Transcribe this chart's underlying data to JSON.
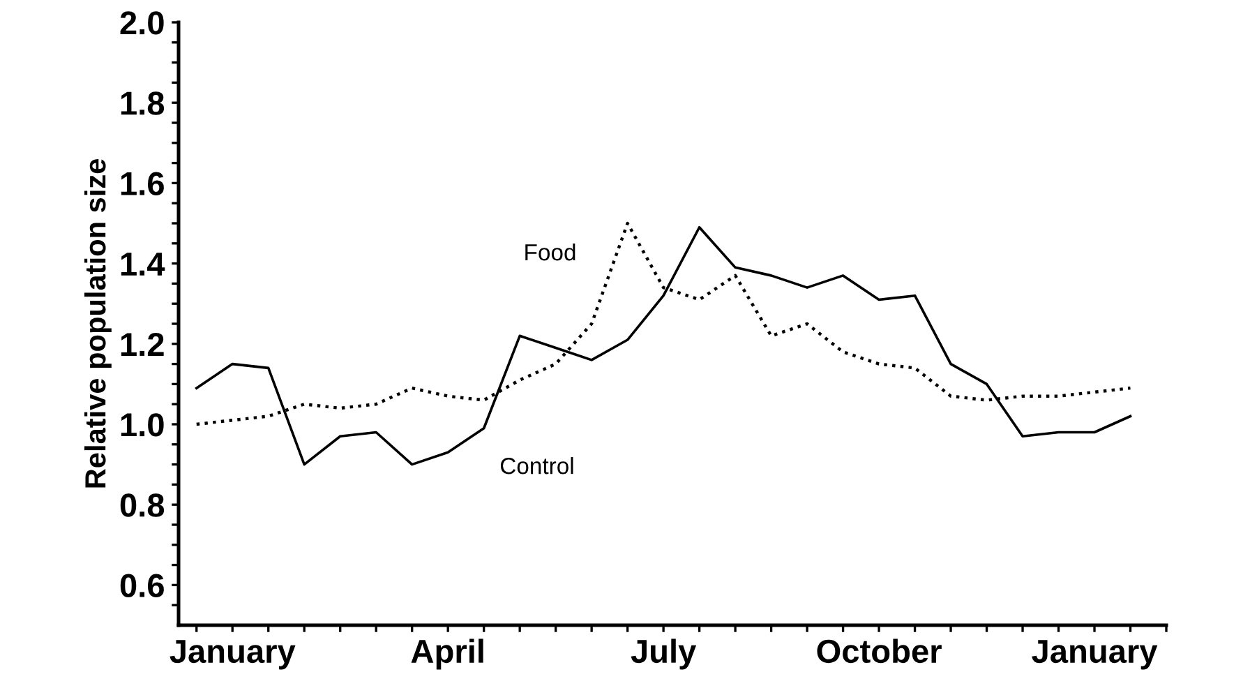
{
  "chart_data": {
    "type": "line",
    "ylabel": "Relative population size",
    "categories": [
      null,
      "January",
      null,
      null,
      null,
      null,
      null,
      "April",
      null,
      null,
      null,
      null,
      null,
      "July",
      null,
      null,
      null,
      null,
      null,
      "October",
      null,
      null,
      null,
      null,
      null,
      "January",
      null
    ],
    "ylim": [
      0.5,
      2.0
    ],
    "yticks": [
      {
        "value": 0.55,
        "label": null
      },
      {
        "value": 0.6,
        "label": "0.6"
      },
      {
        "value": 0.65,
        "label": null
      },
      {
        "value": 0.7,
        "label": null
      },
      {
        "value": 0.75,
        "label": null
      },
      {
        "value": 0.8,
        "label": "0.8"
      },
      {
        "value": 0.85,
        "label": null
      },
      {
        "value": 0.9,
        "label": null
      },
      {
        "value": 0.95,
        "label": null
      },
      {
        "value": 1.0,
        "label": "1.0"
      },
      {
        "value": 1.05,
        "label": null
      },
      {
        "value": 1.1,
        "label": null
      },
      {
        "value": 1.15,
        "label": null
      },
      {
        "value": 1.2,
        "label": "1.2"
      },
      {
        "value": 1.25,
        "label": null
      },
      {
        "value": 1.3,
        "label": null
      },
      {
        "value": 1.35,
        "label": null
      },
      {
        "value": 1.4,
        "label": "1.4"
      },
      {
        "value": 1.45,
        "label": null
      },
      {
        "value": 1.5,
        "label": null
      },
      {
        "value": 1.55,
        "label": null
      },
      {
        "value": 1.6,
        "label": "1.6"
      },
      {
        "value": 1.65,
        "label": null
      },
      {
        "value": 1.7,
        "label": null
      },
      {
        "value": 1.75,
        "label": null
      },
      {
        "value": 1.8,
        "label": "1.8"
      },
      {
        "value": 1.85,
        "label": null
      },
      {
        "value": 1.9,
        "label": null
      },
      {
        "value": 1.95,
        "label": null
      },
      {
        "value": 2.0,
        "label": "2.0"
      }
    ],
    "grid": false,
    "legend": false,
    "series": [
      {
        "name": "Control",
        "color": "#000000",
        "line_style": "solid",
        "values": [
          1.09,
          1.15,
          1.14,
          0.9,
          0.97,
          0.98,
          0.9,
          0.93,
          0.99,
          1.22,
          1.19,
          1.16,
          1.21,
          1.32,
          1.49,
          1.39,
          1.37,
          1.34,
          1.37,
          1.31,
          1.32,
          1.15,
          1.1,
          0.97,
          0.98,
          0.98,
          1.02
        ]
      },
      {
        "name": "Food",
        "color": "#000000",
        "line_style": "dotted",
        "values": [
          1.0,
          1.01,
          1.02,
          1.05,
          1.04,
          1.05,
          1.09,
          1.07,
          1.06,
          1.11,
          1.15,
          1.25,
          1.5,
          1.34,
          1.31,
          1.37,
          1.22,
          1.25,
          1.18,
          1.15,
          1.14,
          1.07,
          1.06,
          1.07,
          1.07,
          1.08,
          1.09
        ]
      }
    ]
  }
}
